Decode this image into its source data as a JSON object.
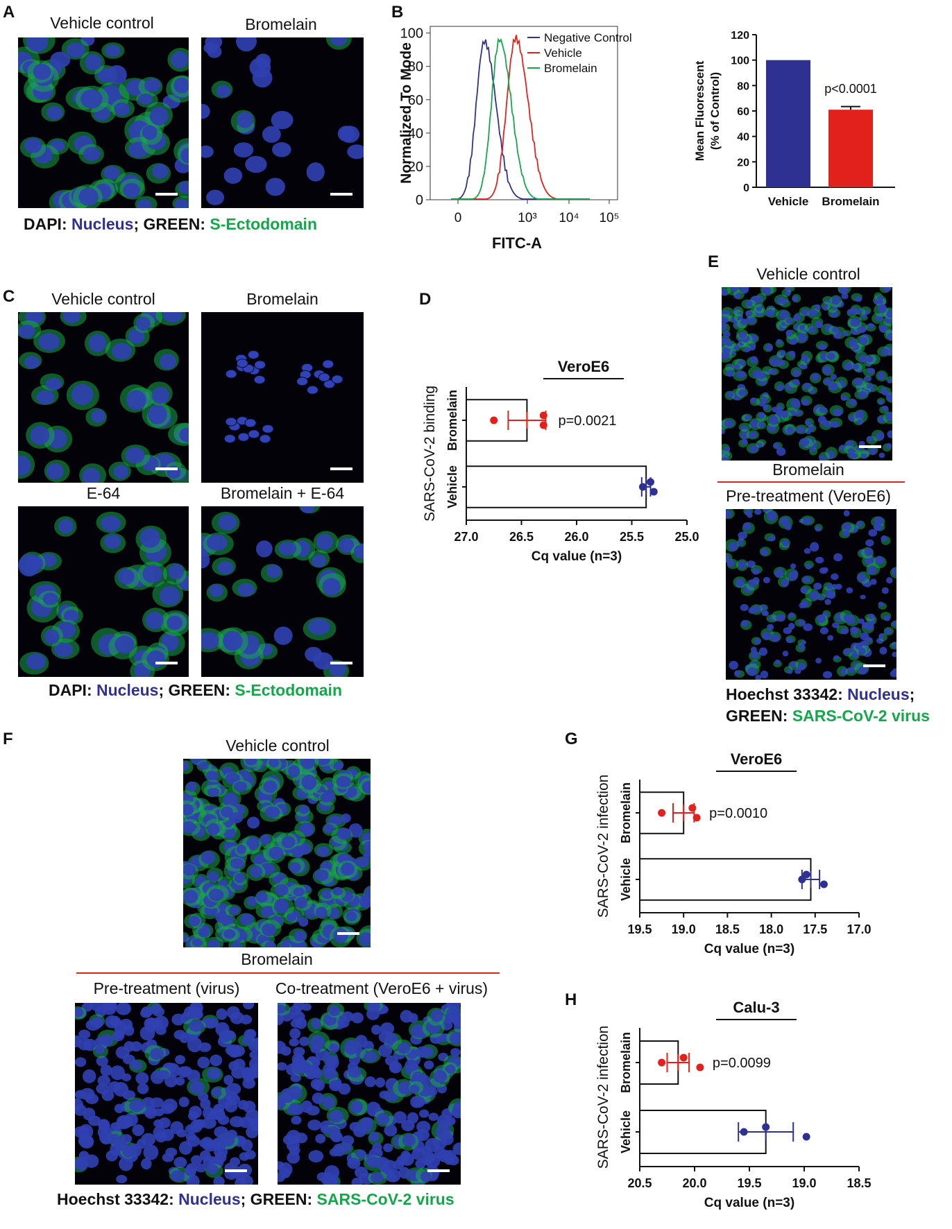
{
  "panels": {
    "A": {
      "label": "A",
      "captions": [
        "Vehicle control",
        "Bromelain"
      ],
      "legend": {
        "p1": "DAPI: ",
        "p2": "Nucleus",
        "p3": "; GREEN: ",
        "p4": "S-Ectodomain"
      }
    },
    "B": {
      "label": "B"
    },
    "C": {
      "label": "C",
      "captions": [
        "Vehicle control",
        "Bromelain",
        "E-64",
        "Bromelain + E-64"
      ],
      "legend": {
        "p1": "DAPI: ",
        "p2": "Nucleus",
        "p3": "; GREEN: ",
        "p4": "S-Ectodomain"
      }
    },
    "D": {
      "label": "D"
    },
    "E": {
      "label": "E",
      "captions": [
        "Vehicle control",
        "Bromelain",
        "Pre-treatment (VeroE6)"
      ],
      "legend": {
        "l1a": "Hoechst 33342: ",
        "l1b": "Nucleus",
        "l1c": ";",
        "l2a": "GREEN: ",
        "l2b": "SARS-CoV-2 virus"
      }
    },
    "F": {
      "label": "F",
      "captions": [
        "Vehicle control",
        "Bromelain",
        "Pre-treatment (virus)",
        "Co-treatment (VeroE6 + virus)"
      ],
      "legend": {
        "p1": "Hoechst 33342: ",
        "p2": "Nucleus",
        "p3": "; GREEN: ",
        "p4": "SARS-CoV-2 virus"
      }
    },
    "G": {
      "label": "G"
    },
    "H": {
      "label": "H"
    }
  },
  "chart_data": [
    {
      "id": "B-histogram",
      "type": "line",
      "xlabel": "FITC-A",
      "ylabel": "Normalized To Mode",
      "xtick_labels": [
        "0",
        "10³",
        "10⁴",
        "10⁵"
      ],
      "ytick_labels": [
        "0",
        "20",
        "40",
        "60",
        "80",
        "100"
      ],
      "ylim": [
        0,
        100
      ],
      "legend_position": "top-right",
      "series": [
        {
          "name": "Negative Control",
          "color": "#2e3192",
          "peak_x": "~10²",
          "peak_y": 95
        },
        {
          "name": "Vehicle",
          "color": "#e3211c",
          "peak_x": "~5×10²",
          "peak_y": 97
        },
        {
          "name": "Bromelain",
          "color": "#12a84a",
          "peak_x": "~3×10²",
          "peak_y": 96
        }
      ]
    },
    {
      "id": "B-bar",
      "type": "bar",
      "ylabel_lines": [
        "Mean Fluorescent",
        "(% of Control)"
      ],
      "categories": [
        "Vehicle",
        "Bromelain"
      ],
      "values": [
        100,
        61
      ],
      "errors": [
        0,
        2.5
      ],
      "colors": [
        "#2e3192",
        "#e3211c"
      ],
      "ylim": [
        0,
        120
      ],
      "yticks": [
        "0",
        "20",
        "40",
        "60",
        "80",
        "100",
        "120"
      ],
      "annotation": "p<0.0001"
    },
    {
      "id": "D",
      "type": "bar",
      "orientation": "horizontal",
      "title": "VeroE6",
      "xlabel": "Cq value (n=3)",
      "ylabel": "SARS-CoV-2 binding",
      "categories": [
        "Bromelain",
        "Vehicle"
      ],
      "values": [
        26.45,
        25.37
      ],
      "errors": [
        0.17,
        0.04
      ],
      "points": [
        [
          26.75,
          26.3,
          26.3
        ],
        [
          25.4,
          25.33,
          25.3
        ]
      ],
      "xlim": [
        27.0,
        25.0
      ],
      "xticks": [
        "27.0",
        "26.5",
        "26.0",
        "25.5",
        "25.0"
      ],
      "annotation": "p=0.0021",
      "colors": [
        "#e3211c",
        "#2e3192"
      ]
    },
    {
      "id": "G",
      "type": "bar",
      "orientation": "horizontal",
      "title": "VeroE6",
      "xlabel": "Cq value (n=3)",
      "ylabel": "SARS-CoV-2 infection",
      "categories": [
        "Bromelain",
        "Vehicle"
      ],
      "values": [
        19.0,
        17.55
      ],
      "errors": [
        0.12,
        0.1
      ],
      "points": [
        [
          19.25,
          18.9,
          18.85
        ],
        [
          17.65,
          17.6,
          17.4
        ]
      ],
      "xlim": [
        19.5,
        17.0
      ],
      "xticks": [
        "19.5",
        "19.0",
        "18.5",
        "18.0",
        "17.5",
        "17.0"
      ],
      "annotation": "p=0.0010",
      "colors": [
        "#e3211c",
        "#2e3192"
      ]
    },
    {
      "id": "H",
      "type": "bar",
      "orientation": "horizontal",
      "title": "Calu-3",
      "xlabel": "Cq value (n=3)",
      "ylabel": "SARS-CoV-2 infection",
      "categories": [
        "Bromelain",
        "Vehicle"
      ],
      "values": [
        20.15,
        19.35
      ],
      "errors": [
        0.1,
        0.25
      ],
      "points": [
        [
          20.3,
          20.1,
          19.95
        ],
        [
          19.55,
          19.35,
          18.98
        ]
      ],
      "xlim": [
        20.5,
        18.5
      ],
      "xticks": [
        "20.5",
        "20.0",
        "19.5",
        "19.0",
        "18.5"
      ],
      "annotation": "p=0.0099",
      "colors": [
        "#e3211c",
        "#2e3192"
      ]
    }
  ]
}
